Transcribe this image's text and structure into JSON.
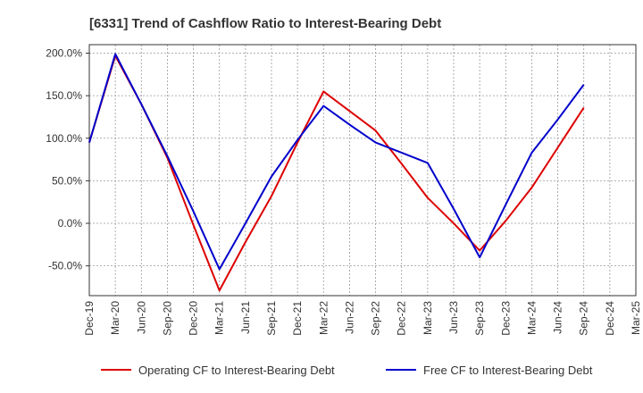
{
  "chart_data": {
    "type": "line",
    "title": "[6331]  Trend of Cashflow Ratio to Interest-Bearing Debt",
    "xlabel": "",
    "ylabel": "",
    "categories": [
      "Dec-19",
      "Mar-20",
      "Jun-20",
      "Sep-20",
      "Dec-20",
      "Mar-21",
      "Jun-21",
      "Sep-21",
      "Dec-21",
      "Mar-22",
      "Jun-22",
      "Sep-22",
      "Dec-22",
      "Mar-23",
      "Jun-23",
      "Sep-23",
      "Dec-23",
      "Mar-24",
      "Jun-24",
      "Sep-24",
      "Dec-24",
      "Mar-25"
    ],
    "y_ticks": [
      "200.0%",
      "150.0%",
      "100.0%",
      "50.0%",
      "0.0%",
      "-50.0%"
    ],
    "y_tick_values": [
      200,
      150,
      100,
      50,
      0,
      -50
    ],
    "ylim": [
      -85,
      210
    ],
    "grid": true,
    "legend_position": "bottom",
    "series": [
      {
        "name": "Operating CF to Interest-Bearing Debt",
        "color": "#dd0000",
        "values": [
          95,
          197,
          140,
          77,
          -2,
          -79,
          -22,
          32,
          95,
          155,
          132,
          109,
          70,
          30,
          0,
          -32,
          3,
          42,
          89,
          136,
          null,
          null
        ]
      },
      {
        "name": "Free CF to Interest-Bearing Debt",
        "color": "#0000cc",
        "values": [
          95,
          199,
          140,
          79,
          14,
          -54,
          0,
          55,
          98,
          138,
          116,
          95,
          83,
          71,
          17,
          -40,
          22,
          83,
          122,
          163,
          null,
          null
        ]
      }
    ]
  }
}
